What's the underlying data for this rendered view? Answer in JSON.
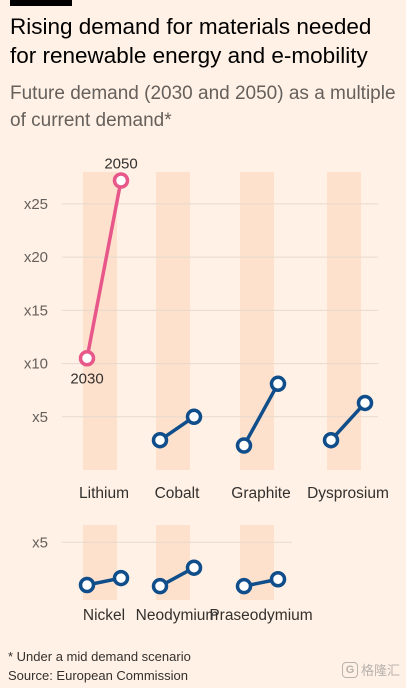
{
  "header": {
    "title": "Rising demand for materials needed for renewable energy and e-mobility",
    "subtitle": "Future demand (2030 and 2050) as a multiple of current demand*"
  },
  "footer": {
    "note": "* Under a mid demand scenario",
    "source": "Source: European Commission",
    "watermark_text": "格隆汇"
  },
  "colors": {
    "background": "#fff1e5",
    "band": "#fde1cc",
    "gridline": "#e6d9ce",
    "lithium": "#e8578a",
    "others": "#0f4e8a",
    "marker_fill": "#ffffff"
  },
  "chart_data": [
    {
      "type": "dumbbell",
      "panel": "top",
      "ylabel": "",
      "yticks": [
        5,
        10,
        15,
        20,
        25
      ],
      "ytick_labels": [
        "x5",
        "x10",
        "x15",
        "x20",
        "x25"
      ],
      "ylim": [
        0,
        28
      ],
      "grid": true,
      "categories": [
        "Lithium",
        "Cobalt",
        "Graphite",
        "Dysprosium"
      ],
      "series": [
        {
          "name": "2030",
          "values": [
            10.5,
            2.8,
            2.3,
            2.8
          ]
        },
        {
          "name": "2050",
          "values": [
            27.2,
            5.0,
            8.1,
            6.3
          ]
        }
      ],
      "annotations": [
        {
          "category": "Lithium",
          "series": "2030",
          "text": "2030"
        },
        {
          "category": "Lithium",
          "series": "2050",
          "text": "2050"
        }
      ]
    },
    {
      "type": "dumbbell",
      "panel": "bottom",
      "yticks": [
        5
      ],
      "ytick_labels": [
        "x5"
      ],
      "ylim": [
        0,
        6.5
      ],
      "grid": true,
      "categories": [
        "Nickel",
        "Neodymium",
        "Praseodymium"
      ],
      "series": [
        {
          "name": "2030",
          "values": [
            1.3,
            1.2,
            1.2
          ]
        },
        {
          "name": "2050",
          "values": [
            1.9,
            2.8,
            1.8
          ]
        }
      ]
    }
  ]
}
